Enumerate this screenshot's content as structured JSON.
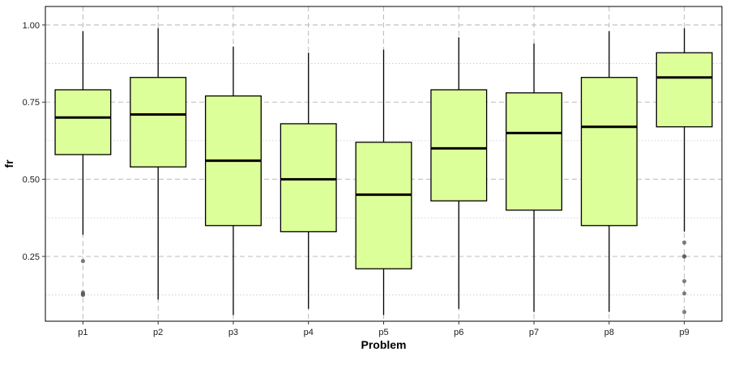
{
  "chart_data": {
    "type": "box",
    "xlabel": "Problem",
    "ylabel": "fr",
    "ylim": [
      0.04,
      1.06
    ],
    "yticks": [
      0.25,
      0.5,
      0.75,
      1.0
    ],
    "ytick_labels": [
      "0.25",
      "0.50",
      "0.75",
      "1.00"
    ],
    "yminor_ticks": [
      0.125,
      0.375,
      0.625,
      0.875
    ],
    "grid": true,
    "categories": [
      "p1",
      "p2",
      "p3",
      "p4",
      "p5",
      "p6",
      "p7",
      "p8",
      "p9"
    ],
    "boxes": [
      {
        "label": "p1",
        "whisker_low": 0.32,
        "q1": 0.58,
        "median": 0.7,
        "q3": 0.79,
        "whisker_high": 0.98,
        "outliers": [
          0.235,
          0.133,
          0.128,
          0.125
        ]
      },
      {
        "label": "p2",
        "whisker_low": 0.11,
        "q1": 0.54,
        "median": 0.71,
        "q3": 0.83,
        "whisker_high": 0.99,
        "outliers": []
      },
      {
        "label": "p3",
        "whisker_low": 0.06,
        "q1": 0.35,
        "median": 0.56,
        "q3": 0.77,
        "whisker_high": 0.93,
        "outliers": []
      },
      {
        "label": "p4",
        "whisker_low": 0.08,
        "q1": 0.33,
        "median": 0.5,
        "q3": 0.68,
        "whisker_high": 0.91,
        "outliers": []
      },
      {
        "label": "p5",
        "whisker_low": 0.06,
        "q1": 0.21,
        "median": 0.45,
        "q3": 0.62,
        "whisker_high": 0.92,
        "outliers": []
      },
      {
        "label": "p6",
        "whisker_low": 0.08,
        "q1": 0.43,
        "median": 0.6,
        "q3": 0.79,
        "whisker_high": 0.96,
        "outliers": []
      },
      {
        "label": "p7",
        "whisker_low": 0.07,
        "q1": 0.4,
        "median": 0.65,
        "q3": 0.78,
        "whisker_high": 0.94,
        "outliers": []
      },
      {
        "label": "p8",
        "whisker_low": 0.07,
        "q1": 0.35,
        "median": 0.67,
        "q3": 0.83,
        "whisker_high": 0.98,
        "outliers": []
      },
      {
        "label": "p9",
        "whisker_low": 0.33,
        "q1": 0.67,
        "median": 0.83,
        "q3": 0.91,
        "whisker_high": 0.99,
        "outliers": [
          0.295,
          0.25,
          0.25,
          0.17,
          0.13,
          0.07
        ]
      }
    ],
    "colors": {
      "box_fill": "#ddff99",
      "box_stroke": "#000000",
      "outlier": "#555555",
      "grid_major": "#b3b3b3",
      "grid_minor": "#c8c8c8"
    }
  }
}
